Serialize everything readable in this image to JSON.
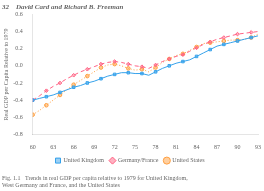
{
  "chart_data": {
    "type": "line",
    "title": "32    David Card and Richard B. Freeman",
    "caption": "Fig. 1.1   Trends in real GDP per capita relative to 1979 for United Kingdom,\nWest Germany and France, and the United States",
    "ylabel": "Real GDP per Capita Relative to 1979",
    "x": [
      1960,
      1961,
      1962,
      1963,
      1964,
      1965,
      1966,
      1967,
      1968,
      1969,
      1970,
      1971,
      1972,
      1973,
      1974,
      1975,
      1976,
      1977,
      1978,
      1979,
      1980,
      1981,
      1982,
      1983,
      1984,
      1985,
      1986,
      1987,
      1988,
      1989,
      1990,
      1991,
      1992,
      1993
    ],
    "xlim": [
      1960,
      1993
    ],
    "xticks": [
      {
        "value": 1960,
        "label": "60"
      },
      {
        "value": 1963,
        "label": "63"
      },
      {
        "value": 1966,
        "label": "66"
      },
      {
        "value": 1969,
        "label": "69"
      },
      {
        "value": 1972,
        "label": "72"
      },
      {
        "value": 1975,
        "label": "75"
      },
      {
        "value": 1978,
        "label": "78"
      },
      {
        "value": 1981,
        "label": "81"
      },
      {
        "value": 1984,
        "label": "84"
      },
      {
        "value": 1987,
        "label": "87"
      },
      {
        "value": 1990,
        "label": "90"
      },
      {
        "value": 1993,
        "label": "93"
      }
    ],
    "ylim": [
      -0.8,
      0.6
    ],
    "yticks": [
      -0.8,
      -0.6,
      -0.4,
      -0.2,
      {
        "value": 0,
        "label": "0.0"
      },
      0.2,
      0.4,
      0.6
    ],
    "grid": false,
    "legend": "bottom",
    "series": [
      {
        "name": "United Kingdom",
        "marker": "square",
        "line_style": "solid",
        "values": [
          -0.4,
          -0.38,
          -0.36,
          -0.34,
          -0.31,
          -0.28,
          -0.25,
          -0.23,
          -0.2,
          -0.18,
          -0.15,
          -0.12,
          -0.1,
          -0.08,
          -0.08,
          -0.09,
          -0.09,
          -0.11,
          -0.07,
          -0.03,
          0.0,
          0.03,
          0.05,
          0.07,
          0.11,
          0.15,
          0.19,
          0.23,
          0.25,
          0.27,
          0.29,
          0.31,
          0.33,
          0.35
        ]
      },
      {
        "name": "Germany/France",
        "marker": "diamond",
        "line_style": "dashed",
        "values": [
          -0.4,
          -0.35,
          -0.29,
          -0.24,
          -0.2,
          -0.15,
          -0.11,
          -0.07,
          -0.04,
          -0.01,
          0.02,
          0.04,
          0.05,
          0.04,
          0.02,
          0.0,
          -0.01,
          -0.03,
          0.01,
          0.05,
          0.08,
          0.11,
          0.13,
          0.17,
          0.21,
          0.25,
          0.28,
          0.31,
          0.33,
          0.35,
          0.37,
          0.38,
          0.39,
          0.4
        ]
      },
      {
        "name": "United States",
        "marker": "circle",
        "line_style": "dotted",
        "values": [
          -0.57,
          -0.52,
          -0.46,
          -0.4,
          -0.34,
          -0.28,
          -0.22,
          -0.17,
          -0.12,
          -0.07,
          -0.02,
          0.01,
          0.02,
          0.0,
          -0.03,
          -0.05,
          -0.04,
          -0.07,
          -0.02,
          0.04,
          0.08,
          0.12,
          0.14,
          0.18,
          0.22,
          0.26,
          0.27,
          0.28,
          0.29,
          0.3,
          0.3,
          0.31,
          0.33,
          0.37
        ]
      }
    ]
  }
}
